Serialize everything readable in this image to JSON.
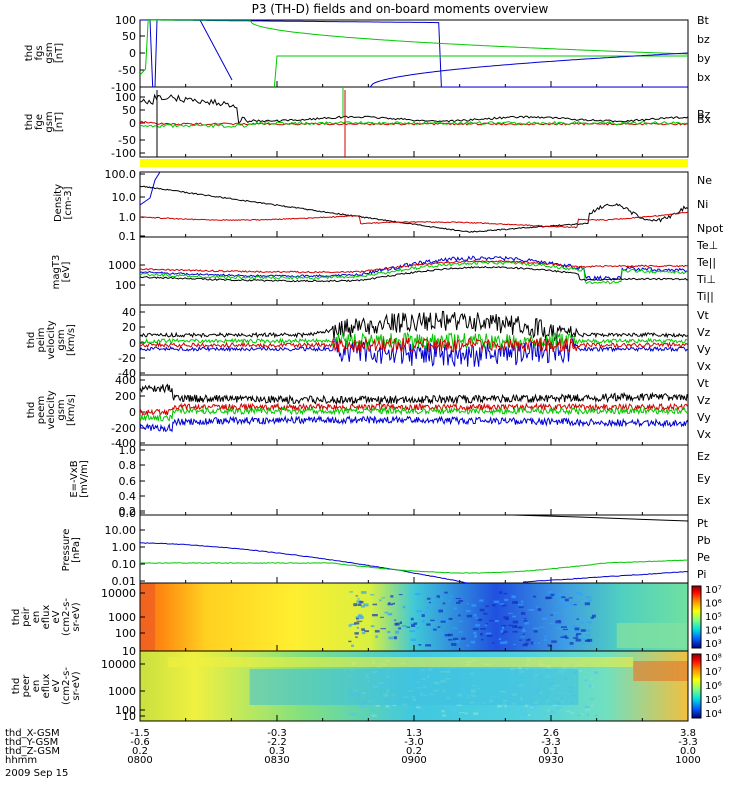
{
  "title": "P3 (TH-D) fields and on-board moments overview",
  "colors": {
    "black": "#000000",
    "red": "#d20000",
    "green": "#00c800",
    "blue": "#0000d2",
    "yellow": "#ffff00"
  },
  "chart_data": [
    {
      "type": "line",
      "panel": "fgs",
      "ylabel": [
        "thd",
        "fgs",
        "gsm",
        "[nT]"
      ],
      "ylim": [
        -100,
        100
      ],
      "ytick_labels": [
        "100",
        "50",
        "0",
        "-50",
        "-100"
      ],
      "legend": [
        {
          "name": "Bt",
          "color": "black"
        },
        {
          "name": "bz",
          "color": "red"
        },
        {
          "name": "by",
          "color": "green"
        },
        {
          "name": "bx",
          "color": "blue"
        }
      ]
    },
    {
      "type": "line",
      "panel": "fge",
      "ylabel": [
        "thd",
        "fge",
        "gsm",
        "[nT]"
      ],
      "ylim": [
        -120,
        120
      ],
      "ytick_labels": [
        "100",
        "50",
        "0",
        "-50",
        "-100"
      ],
      "legend": [
        {
          "name": "Bz",
          "color": "#8b4513"
        },
        {
          "name": "Bx",
          "color": "green"
        }
      ]
    },
    {
      "type": "line",
      "panel": "density",
      "log_scale": true,
      "ylabel": [
        "Density",
        "[cm-3]"
      ],
      "ytick_labels": [
        "100.0",
        "10.0",
        "1.0",
        "0.1"
      ],
      "legend": [
        {
          "name": "Ne",
          "color": "red"
        },
        {
          "name": "Ni",
          "color": "black"
        },
        {
          "name": "Npot",
          "color": "blue"
        }
      ]
    },
    {
      "type": "line",
      "panel": "temperature",
      "log_scale": true,
      "ylabel": [
        "magT3",
        "[eV]"
      ],
      "ytick_labels": [
        "1000",
        "100"
      ],
      "legend": [
        {
          "name": "Te⊥",
          "color": "red"
        },
        {
          "name": "Te||",
          "color": "black"
        },
        {
          "name": "Ti⊥",
          "color": "black"
        },
        {
          "name": "Ti||",
          "color": "green"
        }
      ]
    },
    {
      "type": "line",
      "panel": "peim velocity",
      "ylabel": [
        "thd",
        "peim",
        "velocity",
        "gsm",
        "[km/s]"
      ],
      "ylim": [
        -40,
        40
      ],
      "ytick_labels": [
        "40",
        "20",
        "0",
        "-20",
        "-40"
      ],
      "legend": [
        {
          "name": "Vt",
          "color": "black"
        },
        {
          "name": "Vz",
          "color": "red"
        },
        {
          "name": "Vy",
          "color": "green"
        },
        {
          "name": "Vx",
          "color": "blue"
        }
      ]
    },
    {
      "type": "line",
      "panel": "peem velocity",
      "ylabel": [
        "thd",
        "peem",
        "velocity",
        "gsm",
        "[km/s]"
      ],
      "ylim": [
        -400,
        400
      ],
      "ytick_labels": [
        "400",
        "200",
        "0",
        "-200",
        "-400"
      ],
      "legend": [
        {
          "name": "Vt",
          "color": "black"
        },
        {
          "name": "Vz",
          "color": "red"
        },
        {
          "name": "Vy",
          "color": "green"
        },
        {
          "name": "Vx",
          "color": "blue"
        }
      ]
    },
    {
      "type": "line",
      "panel": "efield",
      "ylabel": [
        "E=-VxB",
        "[mV/m]"
      ],
      "ylim": [
        0,
        1
      ],
      "ytick_labels": [
        "1.0",
        "0.8",
        "0.6",
        "0.4",
        "0.2",
        "0.0"
      ],
      "legend": [
        {
          "name": "Ez",
          "color": "red"
        },
        {
          "name": "Ey",
          "color": "green"
        },
        {
          "name": "Ex",
          "color": "blue"
        }
      ]
    },
    {
      "type": "line",
      "panel": "pressure",
      "log_scale": true,
      "ylabel": [
        "Pressure",
        "[nPa]"
      ],
      "ytick_labels": [
        "10.00",
        "1.00",
        "0.10",
        "0.01"
      ],
      "legend": [
        {
          "name": "Pt",
          "color": "black"
        },
        {
          "name": "Pb",
          "color": "red"
        },
        {
          "name": "Pe",
          "color": "green"
        },
        {
          "name": "Pi",
          "color": "blue"
        }
      ]
    },
    {
      "type": "heatmap",
      "panel": "peir",
      "ylabel": [
        "thd",
        "peir",
        "en",
        "eflux",
        "eV",
        "(cm2-s-",
        "sr-eV)"
      ],
      "ytick_labels": [
        "10000",
        "1000",
        "100",
        "10"
      ],
      "colorbar_labels": [
        "10⁷",
        "10⁶",
        "10⁵",
        "10⁴",
        "10³"
      ]
    },
    {
      "type": "heatmap",
      "panel": "peer",
      "ylabel": [
        "thd",
        "peer",
        "en",
        "eflux",
        "eV",
        "(cm2-s-",
        "sr-eV)"
      ],
      "ytick_labels": [
        "10000",
        "1000",
        "100",
        "10"
      ],
      "colorbar_labels": [
        "10⁸",
        "10⁷",
        "10⁶",
        "10⁵",
        "10⁴"
      ]
    }
  ],
  "x_axis": {
    "rows": [
      {
        "label": "thd_X-GSM",
        "values": [
          "-1.5",
          "-0.3",
          "1.3",
          "2.6",
          "3.8"
        ]
      },
      {
        "label": "thd_Y-GSM",
        "values": [
          "-0.6",
          "-2.2",
          "-3.0",
          "-3.3",
          "-3.3"
        ]
      },
      {
        "label": "thd_Z-GSM",
        "values": [
          "0.2",
          "0.3",
          "0.2",
          "0.1",
          "0.0"
        ]
      },
      {
        "label": "hhmm",
        "values": [
          "0800",
          "0830",
          "0900",
          "0930",
          "1000"
        ]
      }
    ],
    "date": "2009 Sep 15"
  }
}
